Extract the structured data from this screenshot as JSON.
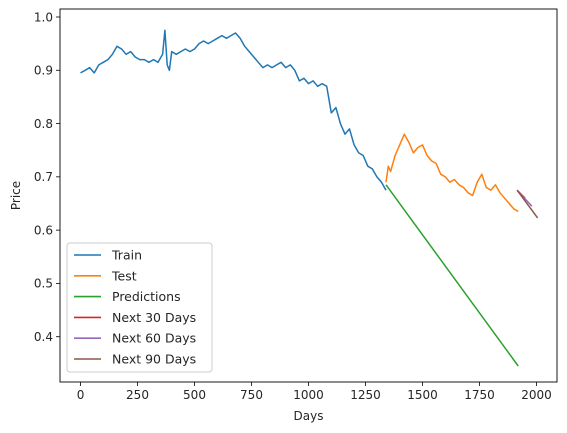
{
  "chart_data": {
    "type": "line",
    "title": "",
    "xlabel": "Days",
    "ylabel": "Price",
    "xlim": [
      -90,
      2090
    ],
    "ylim": [
      0.315,
      1.015
    ],
    "x_ticks": [
      0,
      250,
      500,
      750,
      1000,
      1250,
      1500,
      1750,
      2000
    ],
    "y_ticks": [
      0.4,
      0.5,
      0.6,
      0.7,
      0.8,
      0.9,
      1.0
    ],
    "x_tick_labels": [
      "0",
      "250",
      "500",
      "750",
      "1000",
      "1250",
      "1500",
      "1750",
      "2000"
    ],
    "y_tick_labels": [
      "0.4",
      "0.5",
      "0.6",
      "0.7",
      "0.8",
      "0.9",
      "1.0"
    ],
    "grid": false,
    "legend_position": "lower-left",
    "series": [
      {
        "name": "Train",
        "color": "#1f77b4",
        "points": [
          [
            0,
            0.895
          ],
          [
            20,
            0.9
          ],
          [
            40,
            0.905
          ],
          [
            60,
            0.895
          ],
          [
            80,
            0.91
          ],
          [
            100,
            0.915
          ],
          [
            120,
            0.92
          ],
          [
            140,
            0.93
          ],
          [
            160,
            0.945
          ],
          [
            180,
            0.94
          ],
          [
            200,
            0.93
          ],
          [
            220,
            0.935
          ],
          [
            240,
            0.925
          ],
          [
            260,
            0.92
          ],
          [
            280,
            0.92
          ],
          [
            300,
            0.915
          ],
          [
            320,
            0.92
          ],
          [
            340,
            0.915
          ],
          [
            360,
            0.93
          ],
          [
            370,
            0.975
          ],
          [
            380,
            0.91
          ],
          [
            390,
            0.9
          ],
          [
            400,
            0.935
          ],
          [
            420,
            0.93
          ],
          [
            440,
            0.935
          ],
          [
            460,
            0.94
          ],
          [
            480,
            0.935
          ],
          [
            500,
            0.94
          ],
          [
            520,
            0.95
          ],
          [
            540,
            0.955
          ],
          [
            560,
            0.95
          ],
          [
            580,
            0.955
          ],
          [
            600,
            0.96
          ],
          [
            620,
            0.965
          ],
          [
            640,
            0.96
          ],
          [
            660,
            0.965
          ],
          [
            680,
            0.97
          ],
          [
            700,
            0.96
          ],
          [
            720,
            0.945
          ],
          [
            740,
            0.935
          ],
          [
            760,
            0.925
          ],
          [
            780,
            0.915
          ],
          [
            800,
            0.905
          ],
          [
            820,
            0.91
          ],
          [
            840,
            0.905
          ],
          [
            860,
            0.91
          ],
          [
            880,
            0.915
          ],
          [
            900,
            0.905
          ],
          [
            920,
            0.91
          ],
          [
            940,
            0.9
          ],
          [
            960,
            0.88
          ],
          [
            980,
            0.885
          ],
          [
            1000,
            0.875
          ],
          [
            1020,
            0.88
          ],
          [
            1040,
            0.87
          ],
          [
            1060,
            0.875
          ],
          [
            1080,
            0.87
          ],
          [
            1100,
            0.82
          ],
          [
            1120,
            0.83
          ],
          [
            1140,
            0.8
          ],
          [
            1160,
            0.78
          ],
          [
            1180,
            0.79
          ],
          [
            1200,
            0.76
          ],
          [
            1220,
            0.745
          ],
          [
            1240,
            0.74
          ],
          [
            1260,
            0.72
          ],
          [
            1280,
            0.715
          ],
          [
            1300,
            0.7
          ],
          [
            1320,
            0.69
          ],
          [
            1340,
            0.675
          ]
        ]
      },
      {
        "name": "Test",
        "color": "#ff7f0e",
        "points": [
          [
            1340,
            0.69
          ],
          [
            1350,
            0.72
          ],
          [
            1360,
            0.71
          ],
          [
            1380,
            0.74
          ],
          [
            1400,
            0.76
          ],
          [
            1420,
            0.78
          ],
          [
            1440,
            0.765
          ],
          [
            1460,
            0.745
          ],
          [
            1480,
            0.755
          ],
          [
            1500,
            0.76
          ],
          [
            1520,
            0.74
          ],
          [
            1540,
            0.73
          ],
          [
            1560,
            0.725
          ],
          [
            1580,
            0.705
          ],
          [
            1600,
            0.7
          ],
          [
            1620,
            0.69
          ],
          [
            1640,
            0.695
          ],
          [
            1660,
            0.685
          ],
          [
            1680,
            0.68
          ],
          [
            1700,
            0.67
          ],
          [
            1720,
            0.665
          ],
          [
            1740,
            0.69
          ],
          [
            1760,
            0.705
          ],
          [
            1780,
            0.68
          ],
          [
            1800,
            0.675
          ],
          [
            1820,
            0.685
          ],
          [
            1840,
            0.67
          ],
          [
            1860,
            0.66
          ],
          [
            1880,
            0.65
          ],
          [
            1900,
            0.64
          ],
          [
            1920,
            0.635
          ]
        ]
      },
      {
        "name": "Predictions",
        "color": "#2ca02c",
        "points": [
          [
            1340,
            0.685
          ],
          [
            1920,
            0.345
          ]
        ]
      },
      {
        "name": "Next 30 Days",
        "color": "#d62728",
        "points": [
          [
            1915,
            0.675
          ],
          [
            1950,
            0.66
          ]
        ]
      },
      {
        "name": "Next 60 Days",
        "color": "#9467bd",
        "points": [
          [
            1915,
            0.675
          ],
          [
            1980,
            0.645
          ]
        ]
      },
      {
        "name": "Next 90 Days",
        "color": "#8c564b",
        "points": [
          [
            1915,
            0.675
          ],
          [
            2005,
            0.623
          ]
        ]
      }
    ]
  }
}
